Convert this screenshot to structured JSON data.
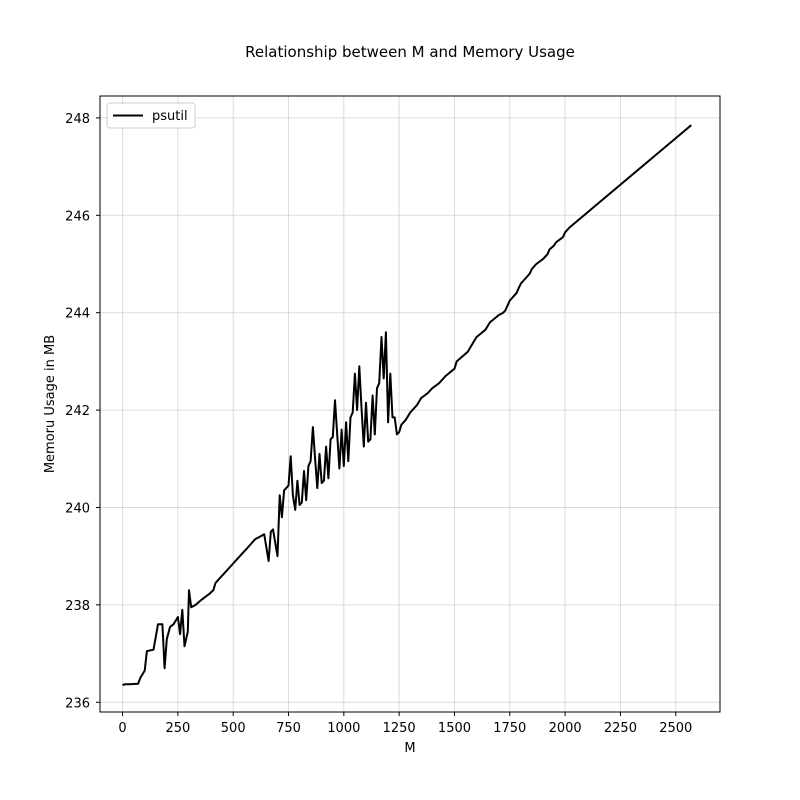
{
  "chart_data": {
    "type": "line",
    "title": "Relationship between M and Memory Usage",
    "xlabel": "M",
    "ylabel": "Memoru Usage in MB",
    "xlim": [
      -102,
      2700
    ],
    "ylim": [
      235.8,
      248.45
    ],
    "xticks": [
      0,
      250,
      500,
      750,
      1000,
      1250,
      1500,
      1750,
      2000,
      2250,
      2500
    ],
    "yticks": [
      236,
      238,
      240,
      242,
      244,
      246,
      248
    ],
    "grid": true,
    "legend_position": "top-left",
    "series": [
      {
        "name": "psutil",
        "color": "#000000",
        "x": [
          0,
          10,
          30,
          70,
          80,
          100,
          110,
          140,
          160,
          180,
          190,
          200,
          215,
          230,
          250,
          260,
          270,
          280,
          295,
          300,
          310,
          330,
          350,
          370,
          390,
          410,
          420,
          440,
          460,
          480,
          500,
          520,
          540,
          560,
          580,
          600,
          620,
          640,
          660,
          670,
          680,
          700,
          710,
          720,
          730,
          750,
          760,
          770,
          780,
          790,
          800,
          810,
          820,
          830,
          840,
          850,
          860,
          870,
          880,
          890,
          900,
          910,
          920,
          930,
          940,
          950,
          960,
          970,
          980,
          990,
          1000,
          1010,
          1020,
          1030,
          1040,
          1050,
          1060,
          1070,
          1080,
          1090,
          1100,
          1110,
          1120,
          1130,
          1140,
          1150,
          1160,
          1170,
          1180,
          1190,
          1200,
          1210,
          1220,
          1230,
          1240,
          1250,
          1260,
          1280,
          1300,
          1330,
          1350,
          1380,
          1400,
          1430,
          1460,
          1500,
          1510,
          1560,
          1580,
          1600,
          1640,
          1660,
          1700,
          1720,
          1730,
          1750,
          1780,
          1790,
          1800,
          1840,
          1850,
          1870,
          1900,
          1920,
          1930,
          1950,
          1960,
          1990,
          2000,
          2020,
          2570
        ],
        "values": [
          236.35,
          236.37,
          236.37,
          236.38,
          236.5,
          236.65,
          237.05,
          237.08,
          237.6,
          237.6,
          236.7,
          237.3,
          237.55,
          237.6,
          237.75,
          237.4,
          237.9,
          237.15,
          237.45,
          238.3,
          237.95,
          238.0,
          238.08,
          238.15,
          238.22,
          238.3,
          238.45,
          238.55,
          238.65,
          238.75,
          238.85,
          238.95,
          239.05,
          239.15,
          239.25,
          239.35,
          239.4,
          239.45,
          238.9,
          239.5,
          239.55,
          239.0,
          240.25,
          239.8,
          240.35,
          240.45,
          241.05,
          240.25,
          239.95,
          240.55,
          240.05,
          240.1,
          240.75,
          240.15,
          240.85,
          240.95,
          241.65,
          241.0,
          240.4,
          241.1,
          240.5,
          240.55,
          241.25,
          240.6,
          241.4,
          241.45,
          242.2,
          241.5,
          240.8,
          241.6,
          240.85,
          241.75,
          240.95,
          241.85,
          241.95,
          242.75,
          242.0,
          242.9,
          242.05,
          241.25,
          242.15,
          241.35,
          241.4,
          242.3,
          241.5,
          242.45,
          242.55,
          243.5,
          242.65,
          243.6,
          241.75,
          242.75,
          241.85,
          241.85,
          241.5,
          241.55,
          241.7,
          241.8,
          241.95,
          242.1,
          242.25,
          242.35,
          242.45,
          242.55,
          242.7,
          242.85,
          243.0,
          243.2,
          243.35,
          243.5,
          243.65,
          243.8,
          243.95,
          244.0,
          244.05,
          244.25,
          244.4,
          244.5,
          244.6,
          244.8,
          244.9,
          245.0,
          245.1,
          245.2,
          245.3,
          245.38,
          245.45,
          245.55,
          245.65,
          245.75,
          247.85
        ]
      }
    ]
  }
}
